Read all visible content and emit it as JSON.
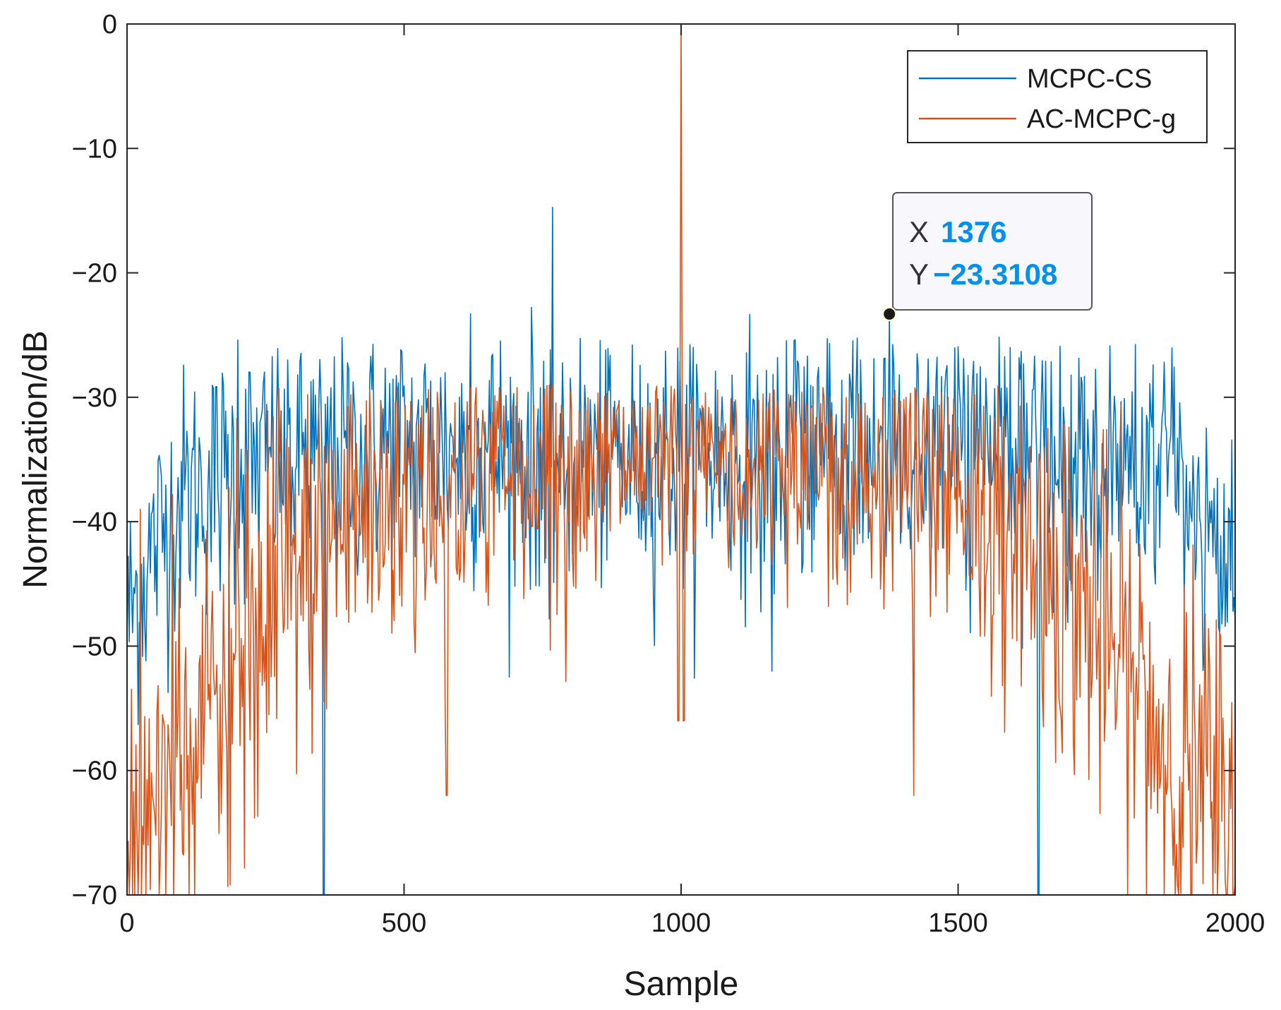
{
  "chart_data": {
    "type": "line",
    "title": "",
    "xlabel": "Sample",
    "ylabel": "Normalization/dB",
    "xlim": [
      0,
      2000
    ],
    "ylim": [
      -70,
      0
    ],
    "xticks": [
      0,
      500,
      1000,
      1500,
      2000
    ],
    "yticks": [
      0,
      -10,
      -20,
      -30,
      -40,
      -50,
      -60,
      -70
    ],
    "xtick_labels": [
      "0",
      "500",
      "1000",
      "1500",
      "2000"
    ],
    "ytick_labels": [
      "0",
      "−10",
      "−20",
      "−30",
      "−40",
      "−50",
      "−60",
      "−70"
    ],
    "grid": false,
    "legend_position": "top-right",
    "series": [
      {
        "name": "MCPC-CS",
        "color": "#0072BD",
        "description": "noise-like sidelobe autocorrelation, roughly -35 dB mean with peaks near -25 dB, lower at edges",
        "envelope_x": [
          0,
          50,
          100,
          200,
          300,
          500,
          1000,
          1500,
          1700,
          1900,
          1950,
          2000
        ],
        "envelope_y": [
          -48,
          -42,
          -38,
          -36,
          -35,
          -34,
          -35,
          -34,
          -35,
          -36,
          -42,
          -48
        ],
        "notable_points": [
          {
            "x": 200,
            "y": -25.4
          },
          {
            "x": 620,
            "y": -23.3
          },
          {
            "x": 1376,
            "y": -23.3108
          },
          {
            "x": 355,
            "y": -70
          },
          {
            "x": 1645,
            "y": -70
          }
        ]
      },
      {
        "name": "AC-MCPC-g",
        "color": "#D95319",
        "description": "autocorrelation with 0 dB mainlobe at sample 1000, sidelobes near -35 dB in center decaying toward -60 dB to -70 dB at edges",
        "envelope_x": [
          0,
          100,
          200,
          300,
          400,
          500,
          1000,
          1500,
          1600,
          1700,
          1800,
          1900,
          2000
        ],
        "envelope_y": [
          -65,
          -60,
          -52,
          -45,
          -40,
          -37,
          -35,
          -37,
          -40,
          -45,
          -52,
          -60,
          -65
        ],
        "peak": {
          "x": 1000,
          "y": 0
        },
        "notable_points": [
          {
            "x": 1000,
            "y": 0
          },
          {
            "x": 995,
            "y": -56
          },
          {
            "x": 1005,
            "y": -56
          },
          {
            "x": 577,
            "y": -62
          },
          {
            "x": 1420,
            "y": -62
          }
        ]
      }
    ],
    "datatip": {
      "x_label": "X",
      "x_value": "1376",
      "y_label": "Y",
      "y_value": "−23.3108",
      "x": 1376,
      "y": -23.3108
    }
  }
}
